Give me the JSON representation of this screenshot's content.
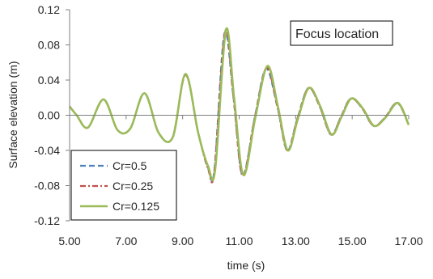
{
  "chart_data": {
    "type": "line",
    "title": "",
    "xlabel": "time (s)",
    "ylabel": "Surface elevation (m)",
    "xlim": [
      5.0,
      17.0
    ],
    "ylim": [
      -0.12,
      0.12
    ],
    "x_ticks": [
      5.0,
      7.0,
      9.0,
      11.0,
      13.0,
      15.0,
      17.0
    ],
    "x_tick_labels": [
      "5.00",
      "7.00",
      "9.00",
      "11.00",
      "13.00",
      "15.00",
      "17.00"
    ],
    "y_ticks": [
      0.12,
      0.08,
      0.04,
      0.0,
      -0.04,
      -0.08,
      -0.12
    ],
    "y_tick_labels": [
      "0.12",
      "0.08",
      "0.04",
      "0.00",
      "-0.04",
      "-0.08",
      "-0.12"
    ],
    "grid": false,
    "legend_placement": "bottom-left",
    "annotation": "Focus location",
    "series": [
      {
        "name": "Cr=0.5",
        "color": "#4f81bd",
        "style": "dashed",
        "x": [
          5.0,
          5.25,
          5.65,
          6.2,
          6.7,
          7.15,
          7.65,
          8.15,
          8.65,
          9.1,
          9.55,
          9.9,
          10.12,
          10.48,
          10.8,
          11.12,
          11.55,
          11.95,
          12.35,
          12.7,
          13.05,
          13.45,
          13.85,
          14.25,
          14.6,
          14.95,
          15.35,
          15.75,
          16.15,
          16.6,
          17.0
        ],
        "y": [
          0.01,
          0.0,
          -0.014,
          0.018,
          -0.017,
          -0.015,
          0.025,
          -0.02,
          -0.025,
          0.046,
          -0.02,
          -0.06,
          -0.063,
          0.093,
          0.02,
          -0.068,
          -0.003,
          0.053,
          0.01,
          -0.04,
          -0.005,
          0.031,
          0.01,
          -0.022,
          -0.002,
          0.019,
          0.008,
          -0.012,
          -0.003,
          0.014,
          -0.011
        ]
      },
      {
        "name": "Cr=0.25",
        "color": "#c0504d",
        "style": "dashdot",
        "x": [
          5.0,
          5.25,
          5.65,
          6.2,
          6.7,
          7.15,
          7.65,
          8.15,
          8.65,
          9.1,
          9.55,
          9.9,
          10.12,
          10.5,
          10.8,
          11.12,
          11.55,
          11.97,
          12.35,
          12.7,
          13.05,
          13.45,
          13.85,
          14.25,
          14.6,
          14.95,
          15.35,
          15.75,
          16.15,
          16.6,
          17.0
        ],
        "y": [
          0.01,
          0.0,
          -0.014,
          0.018,
          -0.017,
          -0.015,
          0.025,
          -0.02,
          -0.025,
          0.046,
          -0.02,
          -0.061,
          -0.064,
          0.095,
          0.02,
          -0.069,
          -0.003,
          0.054,
          0.01,
          -0.04,
          -0.005,
          0.031,
          0.01,
          -0.022,
          -0.002,
          0.019,
          0.008,
          -0.012,
          -0.003,
          0.014,
          -0.011
        ]
      },
      {
        "name": "Cr=0.125",
        "color": "#9bbb59",
        "style": "solid",
        "x": [
          5.0,
          5.25,
          5.65,
          6.2,
          6.7,
          7.15,
          7.65,
          8.15,
          8.65,
          9.1,
          9.55,
          9.9,
          10.15,
          10.53,
          10.82,
          11.15,
          11.57,
          12.0,
          12.37,
          12.72,
          13.07,
          13.47,
          13.87,
          14.27,
          14.62,
          14.97,
          15.37,
          15.77,
          16.17,
          16.62,
          17.0
        ],
        "y": [
          0.01,
          0.0,
          -0.014,
          0.018,
          -0.017,
          -0.015,
          0.025,
          -0.02,
          -0.025,
          0.047,
          -0.02,
          -0.058,
          -0.062,
          0.097,
          0.02,
          -0.068,
          -0.003,
          0.056,
          0.01,
          -0.04,
          -0.005,
          0.031,
          0.01,
          -0.022,
          -0.002,
          0.019,
          0.008,
          -0.012,
          -0.003,
          0.014,
          -0.011
        ]
      }
    ]
  }
}
